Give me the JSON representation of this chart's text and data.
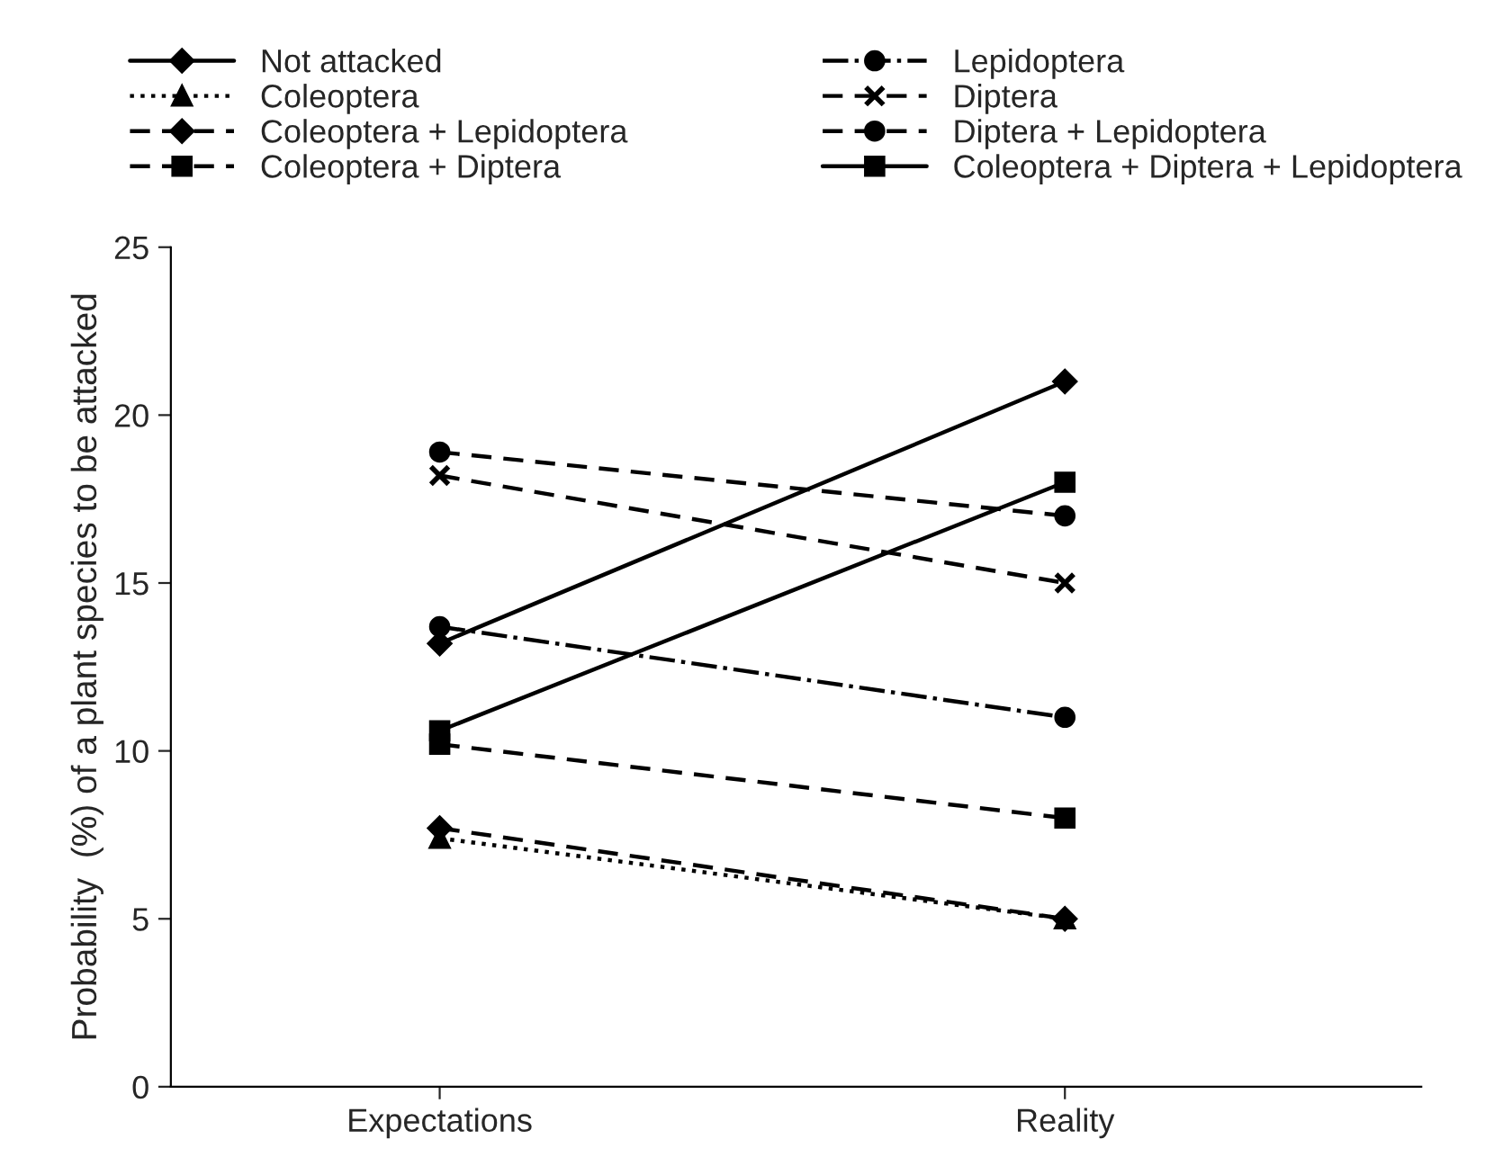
{
  "chart_data": {
    "type": "line",
    "ylabel": "Probability  (%) of a plant species to be attacked",
    "categories": [
      "Expectations",
      "Reality"
    ],
    "ylim": [
      0,
      25
    ],
    "yticks": [
      0,
      5,
      10,
      15,
      20,
      25
    ],
    "grid": false,
    "legend": "top",
    "series": [
      {
        "name": "Not attacked",
        "color": "#000000",
        "values": [
          13.2,
          21
        ],
        "marker": "diamond",
        "line_style": "solid"
      },
      {
        "name": "Coleoptera",
        "color": "#000000",
        "values": [
          7.4,
          5
        ],
        "marker": "triangle",
        "line_style": "dotted"
      },
      {
        "name": "Coleoptera + Lepidoptera",
        "color": "#000000",
        "values": [
          7.7,
          5
        ],
        "marker": "diamond",
        "line_style": "dashed"
      },
      {
        "name": "Coleoptera + Diptera",
        "color": "#000000",
        "values": [
          10.2,
          8
        ],
        "marker": "square",
        "line_style": "dashed"
      },
      {
        "name": "Lepidoptera",
        "color": "#000000",
        "values": [
          13.7,
          11
        ],
        "marker": "circle",
        "line_style": "dashdot"
      },
      {
        "name": "Diptera",
        "color": "#000000",
        "values": [
          18.2,
          15
        ],
        "marker": "cross",
        "line_style": "dashed"
      },
      {
        "name": "Diptera + Lepidoptera",
        "color": "#000000",
        "values": [
          18.9,
          17
        ],
        "marker": "circle",
        "line_style": "dashed"
      },
      {
        "name": "Coleoptera + Diptera + Lepidoptera",
        "color": "#000000",
        "values": [
          10.6,
          18
        ],
        "marker": "square",
        "line_style": "solid"
      }
    ]
  }
}
